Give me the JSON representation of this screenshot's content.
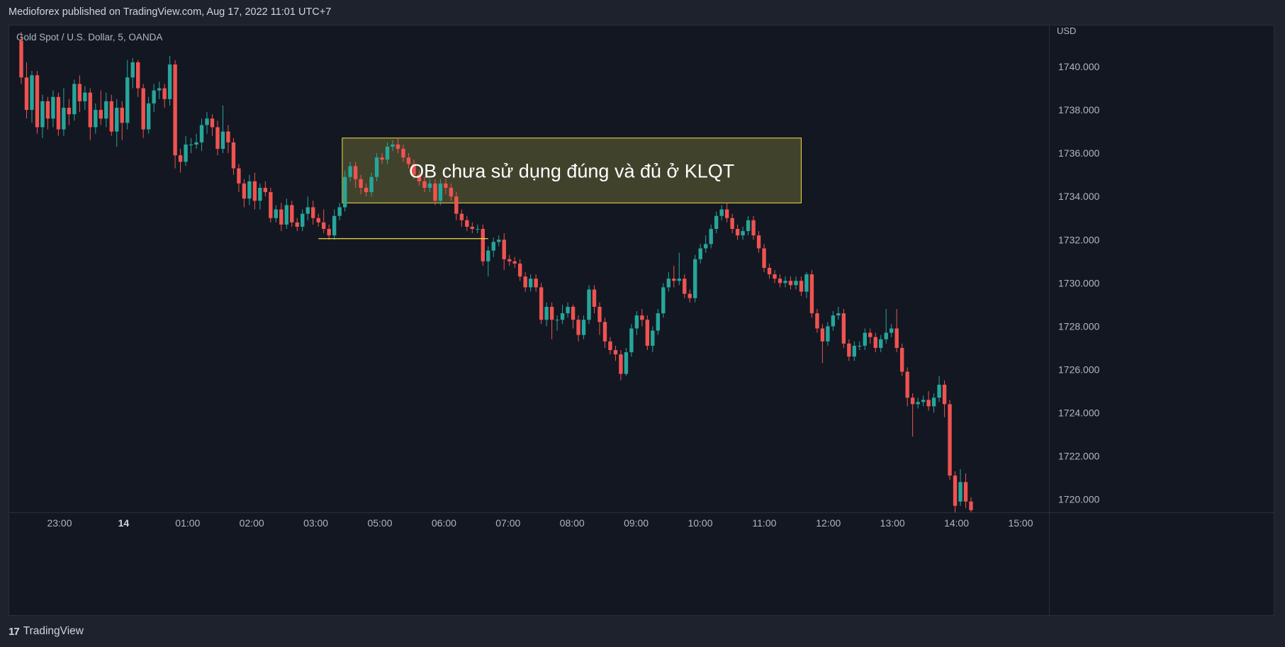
{
  "publish_line": "Medioforex published on TradingView.com, Aug 17, 2022 11:01 UTC+7",
  "brand": {
    "logo_icon": "tradingview-logo-icon",
    "name": "TradingView"
  },
  "colors": {
    "background": "#131722",
    "frame": "#1e222d",
    "up": "#26a69a",
    "down": "#ef5350",
    "zone": "#4a4a2e",
    "zone_border": "#f0e040",
    "level_line": "#f0e040"
  },
  "chart_data": {
    "type": "candlestick",
    "symbol": "Gold Spot / U.S. Dollar, 5, OANDA",
    "currency": "USD",
    "y_ticks": [
      "1740.000",
      "1738.000",
      "1736.000",
      "1734.000",
      "1732.000",
      "1730.000",
      "1728.000",
      "1726.000",
      "1724.000",
      "1722.000",
      "1720.000"
    ],
    "ylim": [
      1719.4,
      1741.9
    ],
    "x_ticks": [
      {
        "label": "23:00",
        "bold": false
      },
      {
        "label": "14",
        "bold": true
      },
      {
        "label": "01:00",
        "bold": false
      },
      {
        "label": "02:00",
        "bold": false
      },
      {
        "label": "03:00",
        "bold": false
      },
      {
        "label": "05:00",
        "bold": false
      },
      {
        "label": "06:00",
        "bold": false
      },
      {
        "label": "07:00",
        "bold": false
      },
      {
        "label": "08:00",
        "bold": false
      },
      {
        "label": "09:00",
        "bold": false
      },
      {
        "label": "10:00",
        "bold": false
      },
      {
        "label": "11:00",
        "bold": false
      },
      {
        "label": "12:00",
        "bold": false
      },
      {
        "label": "13:00",
        "bold": false
      },
      {
        "label": "14:00",
        "bold": false
      },
      {
        "label": "15:00",
        "bold": false
      }
    ],
    "candles": [
      [
        1741.2,
        1739.5,
        1741.6,
        1739.2
      ],
      [
        1739.5,
        1738.0,
        1740.2,
        1737.6
      ],
      [
        1738.0,
        1739.6,
        1739.8,
        1737.4
      ],
      [
        1739.6,
        1737.2,
        1739.8,
        1736.9
      ],
      [
        1737.2,
        1738.4,
        1738.7,
        1736.7
      ],
      [
        1738.4,
        1737.6,
        1738.6,
        1737.1
      ],
      [
        1737.6,
        1738.6,
        1738.9,
        1737.2
      ],
      [
        1738.6,
        1737.1,
        1738.8,
        1736.8
      ],
      [
        1737.1,
        1738.1,
        1739.0,
        1736.8
      ],
      [
        1738.1,
        1737.8,
        1738.5,
        1737.3
      ],
      [
        1737.8,
        1739.2,
        1739.4,
        1737.5
      ],
      [
        1739.2,
        1738.4,
        1739.6,
        1737.9
      ],
      [
        1738.4,
        1738.8,
        1739.1,
        1738.0
      ],
      [
        1738.8,
        1737.2,
        1739.0,
        1736.6
      ],
      [
        1737.2,
        1738.0,
        1738.3,
        1736.9
      ],
      [
        1738.0,
        1737.6,
        1738.9,
        1737.3
      ],
      [
        1737.6,
        1738.4,
        1738.8,
        1737.2
      ],
      [
        1738.4,
        1737.0,
        1738.7,
        1736.8
      ],
      [
        1737.0,
        1738.1,
        1738.5,
        1736.3
      ],
      [
        1738.1,
        1737.4,
        1738.4,
        1736.6
      ],
      [
        1737.4,
        1739.5,
        1740.3,
        1737.1
      ],
      [
        1739.5,
        1740.2,
        1740.4,
        1739.0
      ],
      [
        1740.2,
        1739.0,
        1740.3,
        1738.6
      ],
      [
        1739.0,
        1737.1,
        1739.2,
        1736.7
      ],
      [
        1737.1,
        1738.3,
        1738.6,
        1736.9
      ],
      [
        1738.3,
        1738.9,
        1739.2,
        1737.9
      ],
      [
        1738.9,
        1739.0,
        1739.3,
        1738.5
      ],
      [
        1739.0,
        1738.5,
        1739.2,
        1738.1
      ],
      [
        1738.5,
        1740.1,
        1740.5,
        1738.2
      ],
      [
        1740.1,
        1735.9,
        1740.3,
        1735.3
      ],
      [
        1735.9,
        1735.6,
        1736.2,
        1735.1
      ],
      [
        1735.6,
        1736.4,
        1736.8,
        1735.4
      ],
      [
        1736.4,
        1736.4,
        1736.7,
        1736.0
      ],
      [
        1736.4,
        1736.5,
        1736.9,
        1736.2
      ],
      [
        1736.5,
        1737.3,
        1737.6,
        1736.1
      ],
      [
        1737.3,
        1737.6,
        1737.9,
        1736.9
      ],
      [
        1737.6,
        1737.2,
        1737.8,
        1736.8
      ],
      [
        1737.2,
        1736.2,
        1737.5,
        1735.9
      ],
      [
        1736.2,
        1737.0,
        1738.2,
        1736.0
      ],
      [
        1737.0,
        1736.5,
        1737.3,
        1736.0
      ],
      [
        1736.5,
        1735.3,
        1736.7,
        1735.0
      ],
      [
        1735.3,
        1734.6,
        1735.5,
        1734.2
      ],
      [
        1734.6,
        1733.9,
        1734.8,
        1733.5
      ],
      [
        1733.9,
        1734.7,
        1735.0,
        1733.6
      ],
      [
        1734.7,
        1733.8,
        1735.1,
        1733.4
      ],
      [
        1733.8,
        1734.4,
        1734.6,
        1733.4
      ],
      [
        1734.4,
        1734.2,
        1734.7,
        1734.0
      ],
      [
        1734.2,
        1733.0,
        1734.4,
        1732.8
      ],
      [
        1733.0,
        1733.4,
        1733.6,
        1732.8
      ],
      [
        1733.4,
        1732.7,
        1733.7,
        1732.4
      ],
      [
        1732.7,
        1733.6,
        1733.9,
        1732.5
      ],
      [
        1733.6,
        1732.8,
        1733.8,
        1732.6
      ],
      [
        1732.8,
        1732.6,
        1733.0,
        1732.4
      ],
      [
        1732.6,
        1733.2,
        1733.4,
        1732.4
      ],
      [
        1733.2,
        1733.5,
        1734.0,
        1732.9
      ],
      [
        1733.5,
        1733.0,
        1733.8,
        1732.7
      ],
      [
        1733.0,
        1732.8,
        1733.2,
        1732.6
      ],
      [
        1732.8,
        1732.5,
        1733.4,
        1732.3
      ],
      [
        1732.5,
        1732.2,
        1732.7,
        1732.0
      ],
      [
        1732.2,
        1733.1,
        1733.4,
        1732.0
      ],
      [
        1733.1,
        1733.5,
        1733.7,
        1732.9
      ],
      [
        1733.5,
        1734.9,
        1735.2,
        1733.3
      ],
      [
        1734.9,
        1735.4,
        1735.6,
        1734.7
      ],
      [
        1735.4,
        1734.8,
        1735.6,
        1734.4
      ],
      [
        1734.8,
        1734.4,
        1735.0,
        1734.1
      ],
      [
        1734.4,
        1734.2,
        1734.6,
        1734.0
      ],
      [
        1734.2,
        1734.9,
        1735.1,
        1734.0
      ],
      [
        1734.9,
        1735.8,
        1736.0,
        1734.7
      ],
      [
        1735.8,
        1735.7,
        1736.0,
        1735.5
      ],
      [
        1735.7,
        1736.3,
        1736.5,
        1735.5
      ],
      [
        1736.3,
        1736.4,
        1736.6,
        1736.1
      ],
      [
        1736.4,
        1736.2,
        1736.7,
        1736.0
      ],
      [
        1736.2,
        1735.8,
        1736.4,
        1735.6
      ],
      [
        1735.8,
        1735.5,
        1736.0,
        1735.3
      ],
      [
        1735.5,
        1735.0,
        1735.7,
        1734.8
      ],
      [
        1735.0,
        1734.7,
        1735.2,
        1734.5
      ],
      [
        1734.7,
        1734.4,
        1734.9,
        1734.2
      ],
      [
        1734.4,
        1734.6,
        1734.8,
        1734.2
      ],
      [
        1734.6,
        1733.8,
        1734.8,
        1733.6
      ],
      [
        1733.8,
        1734.6,
        1734.8,
        1733.6
      ],
      [
        1734.6,
        1734.4,
        1734.8,
        1734.1
      ],
      [
        1734.4,
        1734.0,
        1734.6,
        1733.8
      ],
      [
        1734.0,
        1733.2,
        1734.2,
        1732.9
      ],
      [
        1733.2,
        1732.9,
        1733.4,
        1732.6
      ],
      [
        1732.9,
        1732.6,
        1733.1,
        1732.4
      ],
      [
        1732.6,
        1732.5,
        1732.8,
        1732.3
      ],
      [
        1732.5,
        1732.5,
        1732.7,
        1732.3
      ],
      [
        1732.5,
        1731.0,
        1732.7,
        1730.8
      ],
      [
        1731.0,
        1731.5,
        1731.7,
        1730.3
      ],
      [
        1731.5,
        1731.9,
        1732.1,
        1731.2
      ],
      [
        1731.9,
        1732.0,
        1732.2,
        1731.7
      ],
      [
        1732.0,
        1731.1,
        1732.3,
        1730.6
      ],
      [
        1731.1,
        1731.0,
        1731.3,
        1730.8
      ],
      [
        1731.0,
        1730.9,
        1731.2,
        1730.7
      ],
      [
        1730.9,
        1730.3,
        1731.1,
        1730.1
      ],
      [
        1730.3,
        1729.8,
        1730.5,
        1729.6
      ],
      [
        1729.8,
        1730.2,
        1730.4,
        1729.6
      ],
      [
        1730.2,
        1729.8,
        1730.4,
        1729.6
      ],
      [
        1729.8,
        1728.3,
        1730.0,
        1728.1
      ],
      [
        1728.3,
        1728.9,
        1729.1,
        1728.0
      ],
      [
        1728.9,
        1728.3,
        1729.1,
        1727.4
      ],
      [
        1728.3,
        1728.3,
        1728.5,
        1727.8
      ],
      [
        1728.3,
        1728.6,
        1729.0,
        1728.1
      ],
      [
        1728.6,
        1728.9,
        1729.1,
        1728.4
      ],
      [
        1728.9,
        1728.3,
        1729.0,
        1727.9
      ],
      [
        1728.3,
        1727.6,
        1728.5,
        1727.3
      ],
      [
        1727.6,
        1728.3,
        1728.5,
        1727.4
      ],
      [
        1728.3,
        1729.7,
        1729.9,
        1728.1
      ],
      [
        1729.7,
        1728.9,
        1729.9,
        1728.6
      ],
      [
        1728.9,
        1728.2,
        1729.1,
        1727.6
      ],
      [
        1728.2,
        1727.3,
        1728.4,
        1727.0
      ],
      [
        1727.3,
        1726.9,
        1727.5,
        1726.7
      ],
      [
        1726.9,
        1726.7,
        1727.1,
        1726.4
      ],
      [
        1726.7,
        1725.8,
        1726.9,
        1725.5
      ],
      [
        1725.8,
        1726.8,
        1727.0,
        1725.7
      ],
      [
        1726.8,
        1727.9,
        1728.1,
        1726.6
      ],
      [
        1727.9,
        1728.5,
        1728.7,
        1727.6
      ],
      [
        1728.5,
        1728.3,
        1728.8,
        1728.0
      ],
      [
        1728.3,
        1727.1,
        1728.5,
        1726.9
      ],
      [
        1727.1,
        1727.8,
        1728.0,
        1726.8
      ],
      [
        1727.8,
        1728.6,
        1728.8,
        1727.6
      ],
      [
        1728.6,
        1729.8,
        1730.0,
        1728.4
      ],
      [
        1729.8,
        1730.2,
        1730.5,
        1729.6
      ],
      [
        1730.2,
        1730.1,
        1730.8,
        1729.8
      ],
      [
        1730.1,
        1730.2,
        1731.4,
        1729.9
      ],
      [
        1730.2,
        1729.5,
        1730.4,
        1729.3
      ],
      [
        1729.5,
        1729.3,
        1729.7,
        1729.1
      ],
      [
        1729.3,
        1731.1,
        1731.3,
        1729.1
      ],
      [
        1731.1,
        1731.6,
        1731.8,
        1730.9
      ],
      [
        1731.6,
        1731.8,
        1732.2,
        1731.4
      ],
      [
        1731.8,
        1732.5,
        1732.7,
        1731.6
      ],
      [
        1732.5,
        1733.1,
        1733.3,
        1732.3
      ],
      [
        1733.1,
        1733.4,
        1733.6,
        1732.9
      ],
      [
        1733.4,
        1733.0,
        1733.7,
        1732.8
      ],
      [
        1733.0,
        1732.5,
        1733.2,
        1732.3
      ],
      [
        1732.5,
        1732.2,
        1732.7,
        1732.0
      ],
      [
        1732.2,
        1732.4,
        1732.6,
        1732.0
      ],
      [
        1732.4,
        1732.9,
        1733.1,
        1732.2
      ],
      [
        1732.9,
        1732.2,
        1733.1,
        1732.0
      ],
      [
        1732.2,
        1731.6,
        1732.4,
        1731.4
      ],
      [
        1731.6,
        1730.7,
        1731.8,
        1730.5
      ],
      [
        1730.7,
        1730.4,
        1730.9,
        1730.2
      ],
      [
        1730.4,
        1730.2,
        1730.6,
        1730.0
      ],
      [
        1730.2,
        1730.0,
        1730.4,
        1729.8
      ],
      [
        1730.0,
        1730.1,
        1730.3,
        1729.8
      ],
      [
        1730.1,
        1729.9,
        1730.3,
        1729.7
      ],
      [
        1729.9,
        1730.1,
        1730.3,
        1729.7
      ],
      [
        1730.1,
        1729.6,
        1730.3,
        1729.4
      ],
      [
        1729.6,
        1730.4,
        1730.5,
        1729.3
      ],
      [
        1730.4,
        1728.6,
        1730.6,
        1728.4
      ],
      [
        1728.6,
        1727.9,
        1728.8,
        1727.7
      ],
      [
        1727.9,
        1727.3,
        1728.1,
        1726.3
      ],
      [
        1727.3,
        1728.0,
        1728.2,
        1727.1
      ],
      [
        1728.0,
        1728.5,
        1728.7,
        1727.8
      ],
      [
        1728.5,
        1728.6,
        1728.9,
        1728.3
      ],
      [
        1728.6,
        1727.2,
        1728.8,
        1727.0
      ],
      [
        1727.2,
        1726.6,
        1727.4,
        1726.4
      ],
      [
        1726.6,
        1727.1,
        1727.3,
        1726.4
      ],
      [
        1727.1,
        1727.1,
        1727.3,
        1726.9
      ],
      [
        1727.1,
        1727.7,
        1727.9,
        1726.9
      ],
      [
        1727.7,
        1727.5,
        1727.9,
        1727.2
      ],
      [
        1727.5,
        1727.0,
        1727.7,
        1726.8
      ],
      [
        1727.0,
        1727.4,
        1727.6,
        1726.8
      ],
      [
        1727.4,
        1727.7,
        1728.8,
        1727.2
      ],
      [
        1727.7,
        1727.9,
        1728.1,
        1727.5
      ],
      [
        1727.9,
        1727.0,
        1728.8,
        1726.8
      ],
      [
        1727.0,
        1725.9,
        1727.2,
        1725.7
      ],
      [
        1725.9,
        1724.7,
        1726.1,
        1724.3
      ],
      [
        1724.7,
        1724.4,
        1724.9,
        1722.9
      ],
      [
        1724.4,
        1724.5,
        1724.7,
        1724.2
      ],
      [
        1724.5,
        1724.6,
        1724.8,
        1724.3
      ],
      [
        1724.6,
        1724.3,
        1725.0,
        1724.1
      ],
      [
        1724.3,
        1724.7,
        1724.9,
        1724.0
      ],
      [
        1724.7,
        1725.3,
        1725.7,
        1724.5
      ],
      [
        1725.3,
        1724.4,
        1725.5,
        1723.8
      ],
      [
        1724.4,
        1721.1,
        1724.6,
        1720.9
      ],
      [
        1721.1,
        1719.7,
        1721.3,
        1719.4
      ],
      [
        1719.9,
        1720.8,
        1721.4,
        1719.7
      ],
      [
        1720.8,
        1719.9,
        1721.2,
        1719.6
      ],
      [
        1719.9,
        1719.5,
        1720.1,
        1719.4
      ]
    ],
    "ob_zone": {
      "label": "OB chưa sử dụng đúng và đủ ở KLQT",
      "from_index": 61,
      "to_index": 147,
      "top": 1736.7,
      "bottom": 1733.7
    },
    "level_line": {
      "price": 1732.05,
      "from_index": 56,
      "to_index": 88
    }
  }
}
